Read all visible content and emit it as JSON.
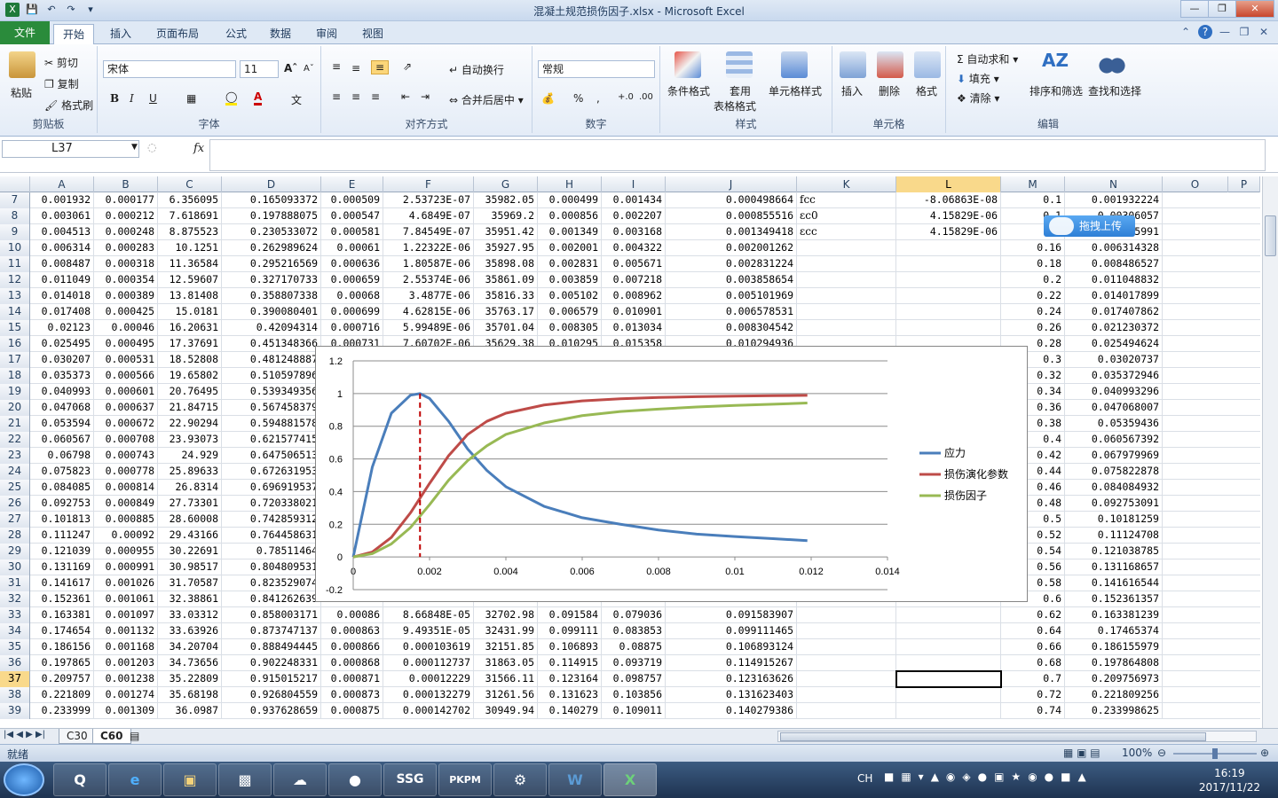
{
  "window": {
    "title": "混凝土规范损伤因子.xlsx - Microsoft Excel"
  },
  "tabs": [
    "文件",
    "开始",
    "插入",
    "页面布局",
    "公式",
    "数据",
    "审阅",
    "视图"
  ],
  "ribbon": {
    "clipboard": {
      "paste": "粘贴",
      "cut": "剪切",
      "copy": "复制",
      "painter": "格式刷",
      "name": "剪贴板"
    },
    "font": {
      "family": "宋体",
      "size": "11",
      "name": "字体"
    },
    "align": {
      "wrap": "自动换行",
      "merge": "合并后居中",
      "name": "对齐方式"
    },
    "number": {
      "format": "常规",
      "name": "数字"
    },
    "styles": {
      "cond": "条件格式",
      "table1": "套用",
      "table2": "表格格式",
      "cell": "单元格样式",
      "name": "样式"
    },
    "cells": {
      "insert": "插入",
      "delete": "删除",
      "format": "格式",
      "name": "单元格"
    },
    "edit": {
      "autosum": "自动求和",
      "fill": "填充",
      "clear": "清除",
      "sort": "排序和筛选",
      "find": "查找和选择",
      "name": "编辑"
    }
  },
  "formula": {
    "namebox": "L37",
    "fx": "fx",
    "value": ""
  },
  "columns": [
    "A",
    "B",
    "C",
    "D",
    "E",
    "F",
    "G",
    "H",
    "I",
    "J",
    "K",
    "L",
    "M",
    "N",
    "O",
    "P"
  ],
  "rows": [
    {
      "n": "7",
      "cells": [
        "0.001932",
        "0.000177",
        "6.356095",
        "0.165093372",
        "0.000509",
        "2.53723E-07",
        "35982.05",
        "0.000499",
        "0.001434",
        "0.000498664",
        "fcc",
        "-8.06863E-08",
        "0.1",
        "0.001932224"
      ]
    },
    {
      "n": "8",
      "cells": [
        "0.003061",
        "0.000212",
        "7.618691",
        "0.197888075",
        "0.000547",
        "4.6849E-07",
        "35969.2",
        "0.000856",
        "0.002207",
        "0.000855516",
        "εc0",
        "4.15829E-06",
        "0.1",
        "0.00306057"
      ]
    },
    {
      "n": "9",
      "cells": [
        "0.004513",
        "0.000248",
        "8.875523",
        "0.230533072",
        "0.000581",
        "7.84549E-07",
        "35951.42",
        "0.001349",
        "0.003168",
        "0.001349418",
        "εcc",
        "4.15829E-06",
        "0.1",
        "0.0045991"
      ]
    },
    {
      "n": "10",
      "cells": [
        "0.006314",
        "0.000283",
        "10.1251",
        "0.262989624",
        "0.00061",
        "1.22322E-06",
        "35927.95",
        "0.002001",
        "0.004322",
        "0.002001262",
        "",
        "",
        "0.16",
        "0.006314328"
      ]
    },
    {
      "n": "11",
      "cells": [
        "0.008487",
        "0.000318",
        "11.36584",
        "0.295216569",
        "0.000636",
        "1.80587E-06",
        "35898.08",
        "0.002831",
        "0.005671",
        "0.002831224",
        "",
        "",
        "0.18",
        "0.008486527"
      ]
    },
    {
      "n": "12",
      "cells": [
        "0.011049",
        "0.000354",
        "12.59607",
        "0.327170733",
        "0.000659",
        "2.55374E-06",
        "35861.09",
        "0.003859",
        "0.007218",
        "0.003858654",
        "",
        "",
        "0.2",
        "0.011048832"
      ]
    },
    {
      "n": "13",
      "cells": [
        "0.014018",
        "0.000389",
        "13.81408",
        "0.358807338",
        "0.00068",
        "3.4877E-06",
        "35816.33",
        "0.005102",
        "0.008962",
        "0.005101969",
        "",
        "",
        "0.22",
        "0.014017899"
      ]
    },
    {
      "n": "14",
      "cells": [
        "0.017408",
        "0.000425",
        "15.0181",
        "0.390080401",
        "0.000699",
        "4.62815E-06",
        "35763.17",
        "0.006579",
        "0.010901",
        "0.006578531",
        "",
        "",
        "0.24",
        "0.017407862"
      ]
    },
    {
      "n": "15",
      "cells": [
        "0.02123",
        "0.00046",
        "16.20631",
        "0.42094314",
        "0.000716",
        "5.99489E-06",
        "35701.04",
        "0.008305",
        "0.013034",
        "0.008304542",
        "",
        "",
        "0.26",
        "0.021230372"
      ]
    },
    {
      "n": "16",
      "cells": [
        "0.025495",
        "0.000495",
        "17.37691",
        "0.451348366",
        "0.000731",
        "7.60702E-06",
        "35629.38",
        "0.010295",
        "0.015358",
        "0.010294936",
        "",
        "",
        "0.28",
        "0.025494624"
      ]
    },
    {
      "n": "17",
      "cells": [
        "0.030207",
        "0.000531",
        "18.52808",
        "0.481248887",
        "",
        "",
        "",
        "",
        "",
        "",
        "",
        "",
        "0.3",
        "0.03020737"
      ]
    },
    {
      "n": "18",
      "cells": [
        "0.035373",
        "0.000566",
        "19.65802",
        "0.510597896",
        "",
        "",
        "",
        "",
        "",
        "",
        "",
        "",
        "0.32",
        "0.035372946"
      ]
    },
    {
      "n": "19",
      "cells": [
        "0.040993",
        "0.000601",
        "20.76495",
        "0.539349356",
        "",
        "",
        "",
        "",
        "",
        "",
        "",
        "",
        "0.34",
        "0.040993296"
      ]
    },
    {
      "n": "20",
      "cells": [
        "0.047068",
        "0.000637",
        "21.84715",
        "0.567458379",
        "",
        "",
        "",
        "",
        "",
        "",
        "",
        "",
        "0.36",
        "0.047068007"
      ]
    },
    {
      "n": "21",
      "cells": [
        "0.053594",
        "0.000672",
        "22.90294",
        "0.594881578",
        "",
        "",
        "",
        "",
        "",
        "",
        "",
        "",
        "0.38",
        "0.05359436"
      ]
    },
    {
      "n": "22",
      "cells": [
        "0.060567",
        "0.000708",
        "23.93073",
        "0.621577415",
        "",
        "",
        "",
        "",
        "",
        "",
        "",
        "",
        "0.4",
        "0.060567392"
      ]
    },
    {
      "n": "23",
      "cells": [
        "0.06798",
        "0.000743",
        "24.929",
        "0.647506513",
        "",
        "",
        "",
        "",
        "",
        "",
        "",
        "",
        "0.42",
        "0.067979969"
      ]
    },
    {
      "n": "24",
      "cells": [
        "0.075823",
        "0.000778",
        "25.89633",
        "0.672631953",
        "",
        "",
        "",
        "",
        "",
        "",
        "",
        "",
        "0.44",
        "0.075822878"
      ]
    },
    {
      "n": "25",
      "cells": [
        "0.084085",
        "0.000814",
        "26.8314",
        "0.696919537",
        "",
        "",
        "",
        "",
        "",
        "",
        "",
        "",
        "0.46",
        "0.084084932"
      ]
    },
    {
      "n": "26",
      "cells": [
        "0.092753",
        "0.000849",
        "27.73301",
        "0.720338021",
        "",
        "",
        "",
        "",
        "",
        "",
        "",
        "",
        "0.48",
        "0.092753091"
      ]
    },
    {
      "n": "27",
      "cells": [
        "0.101813",
        "0.000885",
        "28.60008",
        "0.742859312",
        "",
        "",
        "",
        "",
        "",
        "",
        "",
        "",
        "0.5",
        "0.10181259"
      ]
    },
    {
      "n": "28",
      "cells": [
        "0.111247",
        "0.00092",
        "29.43166",
        "0.764458631",
        "",
        "",
        "",
        "",
        "",
        "",
        "",
        "",
        "0.52",
        "0.11124708"
      ]
    },
    {
      "n": "29",
      "cells": [
        "0.121039",
        "0.000955",
        "30.22691",
        "0.78511464",
        "",
        "",
        "",
        "",
        "",
        "",
        "",
        "",
        "0.54",
        "0.121038785"
      ]
    },
    {
      "n": "30",
      "cells": [
        "0.131169",
        "0.000991",
        "30.98517",
        "0.804809531",
        "",
        "",
        "",
        "",
        "",
        "",
        "",
        "",
        "0.56",
        "0.131168657"
      ]
    },
    {
      "n": "31",
      "cells": [
        "0.141617",
        "0.001026",
        "31.70587",
        "0.823529074",
        "",
        "",
        "",
        "",
        "",
        "",
        "",
        "",
        "0.58",
        "0.141616544"
      ]
    },
    {
      "n": "32",
      "cells": [
        "0.152361",
        "0.001061",
        "32.38861",
        "0.841262639",
        "",
        "",
        "",
        "",
        "",
        "",
        "",
        "",
        "0.6",
        "0.152361357"
      ]
    },
    {
      "n": "33",
      "cells": [
        "0.163381",
        "0.001097",
        "33.03312",
        "0.858003171",
        "0.00086",
        "8.66848E-05",
        "32702.98",
        "0.091584",
        "0.079036",
        "0.091583907",
        "",
        "",
        "0.62",
        "0.163381239"
      ]
    },
    {
      "n": "34",
      "cells": [
        "0.174654",
        "0.001132",
        "33.63926",
        "0.873747137",
        "0.000863",
        "9.49351E-05",
        "32431.99",
        "0.099111",
        "0.083853",
        "0.099111465",
        "",
        "",
        "0.64",
        "0.17465374"
      ]
    },
    {
      "n": "35",
      "cells": [
        "0.186156",
        "0.001168",
        "34.20704",
        "0.888494445",
        "0.000866",
        "0.000103619",
        "32151.85",
        "0.106893",
        "0.08875",
        "0.106893124",
        "",
        "",
        "0.66",
        "0.186155979"
      ]
    },
    {
      "n": "36",
      "cells": [
        "0.197865",
        "0.001203",
        "34.73656",
        "0.902248331",
        "0.000868",
        "0.000112737",
        "31863.05",
        "0.114915",
        "0.093719",
        "0.114915267",
        "",
        "",
        "0.68",
        "0.197864808"
      ]
    },
    {
      "n": "37",
      "cells": [
        "0.209757",
        "0.001238",
        "35.22809",
        "0.915015217",
        "0.000871",
        "0.00012229",
        "31566.11",
        "0.123164",
        "0.098757",
        "0.123163626",
        "",
        "",
        "0.7",
        "0.209756973"
      ]
    },
    {
      "n": "38",
      "cells": [
        "0.221809",
        "0.001274",
        "35.68198",
        "0.926804559",
        "0.000873",
        "0.000132279",
        "31261.56",
        "0.131623",
        "0.103856",
        "0.131623403",
        "",
        "",
        "0.72",
        "0.221809256"
      ]
    },
    {
      "n": "39",
      "cells": [
        "0.233999",
        "0.001309",
        "36.0987",
        "0.937628659",
        "0.000875",
        "0.000142702",
        "30949.94",
        "0.140279",
        "0.109011",
        "0.140279386",
        "",
        "",
        "0.74",
        "0.233998625"
      ]
    }
  ],
  "sheets": [
    "C30",
    "C60"
  ],
  "status": {
    "ready": "就绪",
    "zoom": "100%"
  },
  "cloud": "拖拽上传",
  "clock": {
    "time": "16:19",
    "date": "2017/11/22"
  },
  "taskbar": {
    "lang": "CH"
  },
  "chart_data": {
    "type": "line",
    "title": "",
    "xlim": [
      0,
      0.014
    ],
    "ylim": [
      -0.2,
      1.2
    ],
    "xticks": [
      "0",
      "0.002",
      "0.004",
      "0.006",
      "0.008",
      "0.01",
      "0.012",
      "0.014"
    ],
    "yticks": [
      "-0.2",
      "0",
      "0.2",
      "0.4",
      "0.6",
      "0.8",
      "1",
      "1.2"
    ],
    "legend_position": "right",
    "marker_line_x": 0.00175,
    "series": [
      {
        "name": "应力",
        "color": "#4a7ebb",
        "points": [
          [
            0,
            0
          ],
          [
            0.0005,
            0.55
          ],
          [
            0.001,
            0.88
          ],
          [
            0.0015,
            0.99
          ],
          [
            0.00175,
            1.0
          ],
          [
            0.002,
            0.97
          ],
          [
            0.0025,
            0.83
          ],
          [
            0.003,
            0.66
          ],
          [
            0.0035,
            0.53
          ],
          [
            0.004,
            0.43
          ],
          [
            0.005,
            0.31
          ],
          [
            0.006,
            0.24
          ],
          [
            0.007,
            0.2
          ],
          [
            0.008,
            0.165
          ],
          [
            0.009,
            0.14
          ],
          [
            0.01,
            0.125
          ],
          [
            0.011,
            0.112
          ],
          [
            0.0119,
            0.1
          ]
        ]
      },
      {
        "name": "损伤演化参数",
        "color": "#be4b48",
        "points": [
          [
            0,
            0
          ],
          [
            0.0005,
            0.03
          ],
          [
            0.001,
            0.12
          ],
          [
            0.0015,
            0.27
          ],
          [
            0.00175,
            0.36
          ],
          [
            0.002,
            0.45
          ],
          [
            0.0025,
            0.62
          ],
          [
            0.003,
            0.75
          ],
          [
            0.0035,
            0.83
          ],
          [
            0.004,
            0.88
          ],
          [
            0.005,
            0.93
          ],
          [
            0.006,
            0.955
          ],
          [
            0.007,
            0.968
          ],
          [
            0.008,
            0.976
          ],
          [
            0.009,
            0.981
          ],
          [
            0.01,
            0.984
          ],
          [
            0.011,
            0.987
          ],
          [
            0.0119,
            0.989
          ]
        ]
      },
      {
        "name": "损伤因子",
        "color": "#98b954",
        "points": [
          [
            0,
            0
          ],
          [
            0.0005,
            0.02
          ],
          [
            0.001,
            0.08
          ],
          [
            0.0015,
            0.18
          ],
          [
            0.00175,
            0.25
          ],
          [
            0.002,
            0.32
          ],
          [
            0.0025,
            0.47
          ],
          [
            0.003,
            0.59
          ],
          [
            0.0035,
            0.68
          ],
          [
            0.004,
            0.75
          ],
          [
            0.005,
            0.82
          ],
          [
            0.006,
            0.865
          ],
          [
            0.007,
            0.89
          ],
          [
            0.008,
            0.905
          ],
          [
            0.009,
            0.918
          ],
          [
            0.01,
            0.927
          ],
          [
            0.011,
            0.935
          ],
          [
            0.0119,
            0.942
          ]
        ]
      }
    ]
  }
}
